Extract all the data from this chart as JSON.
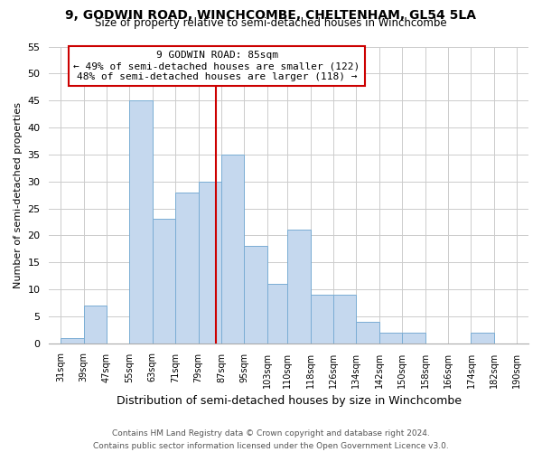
{
  "title": "9, GODWIN ROAD, WINCHCOMBE, CHELTENHAM, GL54 5LA",
  "subtitle": "Size of property relative to semi-detached houses in Winchcombe",
  "xlabel": "Distribution of semi-detached houses by size in Winchcombe",
  "ylabel": "Number of semi-detached properties",
  "footer_line1": "Contains HM Land Registry data © Crown copyright and database right 2024.",
  "footer_line2": "Contains public sector information licensed under the Open Government Licence v3.0.",
  "bins": [
    31,
    39,
    47,
    55,
    63,
    71,
    79,
    87,
    95,
    103,
    110,
    118,
    126,
    134,
    142,
    150,
    158,
    166,
    174,
    182,
    190
  ],
  "counts": [
    1,
    7,
    0,
    45,
    23,
    28,
    30,
    35,
    18,
    11,
    21,
    9,
    9,
    4,
    2,
    2,
    0,
    0,
    2,
    0
  ],
  "bar_color": "#c5d8ee",
  "bar_edge_color": "#7aadd4",
  "property_value": 85,
  "annotation_title": "9 GODWIN ROAD: 85sqm",
  "annotation_line1": "← 49% of semi-detached houses are smaller (122)",
  "annotation_line2": "48% of semi-detached houses are larger (118) →",
  "annotation_box_color": "#ffffff",
  "annotation_box_edge_color": "#cc0000",
  "vline_color": "#cc0000",
  "ylim": [
    0,
    55
  ],
  "yticks": [
    0,
    5,
    10,
    15,
    20,
    25,
    30,
    35,
    40,
    45,
    50,
    55
  ],
  "bg_color": "#ffffff",
  "grid_color": "#cccccc"
}
